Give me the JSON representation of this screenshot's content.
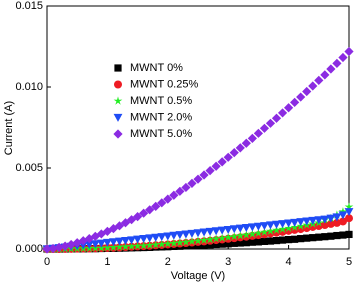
{
  "chart_data": {
    "type": "scatter",
    "x_label": "Voltage (V)",
    "y_label": "Current (A)",
    "xlim": [
      0,
      5
    ],
    "xticks": [
      0,
      1,
      2,
      3,
      4,
      5
    ],
    "ylim": [
      0,
      0.015
    ],
    "yticks": [
      {
        "value": 0,
        "label": "0.000"
      },
      {
        "value": 0.005,
        "label": "0.005"
      },
      {
        "value": 0.01,
        "label": "0.010"
      },
      {
        "value": 0.015,
        "label": "0.015"
      }
    ],
    "legend": "upper left",
    "x": [
      0,
      0.1,
      0.2,
      0.3,
      0.4,
      0.5,
      0.6,
      0.7,
      0.8,
      0.9,
      1,
      1.1,
      1.2,
      1.3,
      1.4,
      1.5,
      1.6,
      1.7,
      1.8,
      1.9,
      2,
      2.1,
      2.2,
      2.3,
      2.4,
      2.5,
      2.6,
      2.7,
      2.8,
      2.9,
      3,
      3.1,
      3.2,
      3.3,
      3.4,
      3.5,
      3.6,
      3.7,
      3.8,
      3.9,
      4,
      4.1,
      4.2,
      4.3,
      4.4,
      4.5,
      4.6,
      4.7,
      4.8,
      4.9,
      5
    ],
    "series": [
      {
        "name": "MWNT 0%",
        "color": "#000000",
        "marker": "square",
        "values": [
          0,
          0,
          0,
          0,
          1e-05,
          1e-05,
          1e-05,
          2e-05,
          2e-05,
          3e-05,
          4e-05,
          4e-05,
          5e-05,
          6e-05,
          7e-05,
          8e-05,
          9e-05,
          0.0001,
          0.00012,
          0.00013,
          0.00014,
          0.00016,
          0.00017,
          0.00019,
          0.00021,
          0.00023,
          0.00024,
          0.00026,
          0.00028,
          0.0003,
          0.00032,
          0.00035,
          0.00037,
          0.00039,
          0.00042,
          0.00044,
          0.00047,
          0.00049,
          0.00052,
          0.00055,
          0.00058,
          0.0006,
          0.00064,
          0.00067,
          0.0007,
          0.00073,
          0.00076,
          0.00079,
          0.00083,
          0.00086,
          0.0009
        ]
      },
      {
        "name": "MWNT 0.25%",
        "color": "#ee1c24",
        "marker": "circle",
        "values": [
          0,
          0,
          0,
          1e-05,
          1e-05,
          2e-05,
          3e-05,
          3e-05,
          4e-05,
          6e-05,
          7e-05,
          8e-05,
          0.0001,
          0.00012,
          0.00014,
          0.00016,
          0.00018,
          0.0002,
          0.00023,
          0.00025,
          0.00028,
          0.00031,
          0.00034,
          0.00037,
          0.0004,
          0.00044,
          0.00047,
          0.00051,
          0.00055,
          0.00059,
          0.00063,
          0.00067,
          0.00072,
          0.00076,
          0.00081,
          0.00086,
          0.00091,
          0.00096,
          0.00101,
          0.00106,
          0.00112,
          0.00118,
          0.00123,
          0.00129,
          0.00136,
          0.00142,
          0.00148,
          0.00155,
          0.00161,
          0.0017,
          0.0019
        ]
      },
      {
        "name": "MWNT 0.5%",
        "color": "#22ee22",
        "marker": "star",
        "values": [
          0,
          0,
          0,
          1e-05,
          1e-05,
          2e-05,
          3e-05,
          4e-05,
          5e-05,
          6e-05,
          8e-05,
          0.0001,
          0.00012,
          0.00014,
          0.00016,
          0.00018,
          0.0002,
          0.00023,
          0.00026,
          0.00029,
          0.00032,
          0.00035,
          0.00039,
          0.00042,
          0.00046,
          0.0005,
          0.00054,
          0.00058,
          0.00063,
          0.00067,
          0.00072,
          0.00077,
          0.00082,
          0.00087,
          0.00092,
          0.00098,
          0.00104,
          0.0011,
          0.00116,
          0.00122,
          0.00128,
          0.00134,
          0.00141,
          0.00148,
          0.00155,
          0.00162,
          0.0018,
          0.0019,
          0.0021,
          0.0023,
          0.0026
        ]
      },
      {
        "name": "MWNT 2.0%",
        "color": "#1f4cf5",
        "marker": "triangle-down",
        "values": [
          0,
          4e-05,
          8e-05,
          0.00012,
          0.00016,
          0.0002,
          0.00024,
          0.00028,
          0.00032,
          0.00036,
          0.0004,
          0.00044,
          0.00048,
          0.00052,
          0.00056,
          0.0006,
          0.00064,
          0.00068,
          0.00072,
          0.00076,
          0.0008,
          0.00084,
          0.00088,
          0.00092,
          0.00096,
          0.001,
          0.00104,
          0.00108,
          0.00112,
          0.00116,
          0.0012,
          0.00124,
          0.00128,
          0.00132,
          0.00136,
          0.0014,
          0.00144,
          0.00148,
          0.00152,
          0.00156,
          0.0016,
          0.00164,
          0.00168,
          0.00172,
          0.00176,
          0.0018,
          0.00184,
          0.0019,
          0.00198,
          0.0021,
          0.0023
        ]
      },
      {
        "name": "MWNT 5.0%",
        "color": "#8b2be2",
        "marker": "diamond",
        "values": [
          0,
          3e-05,
          0.0001,
          0.00018,
          0.00028,
          0.00039,
          0.00051,
          0.00064,
          0.00078,
          0.00093,
          0.00109,
          0.00126,
          0.00143,
          0.00162,
          0.00181,
          0.002,
          0.00221,
          0.00242,
          0.00263,
          0.00285,
          0.00308,
          0.00332,
          0.00356,
          0.0038,
          0.00405,
          0.00431,
          0.00457,
          0.00484,
          0.00511,
          0.00538,
          0.00566,
          0.00595,
          0.00624,
          0.00653,
          0.00683,
          0.00714,
          0.00745,
          0.00776,
          0.00807,
          0.0084,
          0.00872,
          0.00905,
          0.00938,
          0.00972,
          0.01006,
          0.01041,
          0.01075,
          0.01111,
          0.01146,
          0.01182,
          0.01219
        ]
      }
    ]
  }
}
